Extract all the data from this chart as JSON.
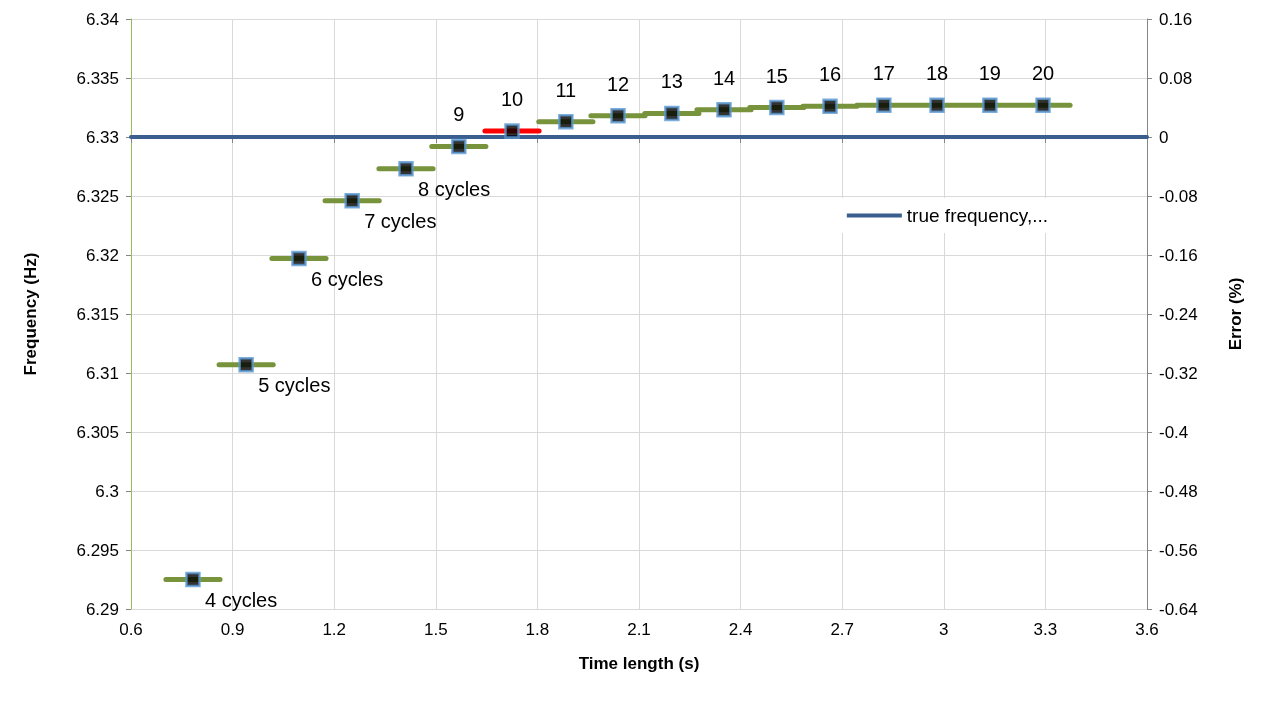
{
  "chart_data": {
    "type": "scatter",
    "xlabel": "Time length (s)",
    "ylabel": "Frequency (Hz)",
    "y2label": "Error (%)",
    "xlim": [
      0.6,
      3.6
    ],
    "xticks": [
      0.6,
      0.9,
      1.2,
      1.5,
      1.8,
      2.1,
      2.4,
      2.7,
      3,
      3.3,
      3.6
    ],
    "ylim": [
      6.29,
      6.34
    ],
    "yticks": [
      6.29,
      6.295,
      6.3,
      6.305,
      6.31,
      6.315,
      6.32,
      6.325,
      6.33,
      6.335,
      6.34
    ],
    "y2lim": [
      -0.64,
      0.16
    ],
    "y2ticks": [
      -0.64,
      -0.56,
      -0.48,
      -0.4,
      -0.32,
      -0.24,
      -0.16,
      -0.08,
      0,
      0.08,
      0.16
    ],
    "grid": true,
    "legend": "right",
    "annotations": [
      {
        "text": "4 cycles",
        "x": 0.783,
        "y": 6.2925
      },
      {
        "text": "5 cycles",
        "x": 0.94,
        "y": 6.3107
      },
      {
        "text": "6 cycles",
        "x": 1.096,
        "y": 6.3197
      },
      {
        "text": "7 cycles",
        "x": 1.253,
        "y": 6.3246
      },
      {
        "text": "8 cycles",
        "x": 1.412,
        "y": 6.3273
      },
      {
        "text": "9",
        "x": 1.568,
        "y": 6.3292
      },
      {
        "text": "10",
        "x": 1.725,
        "y": 6.3305
      },
      {
        "text": "11",
        "x": 1.884,
        "y": 6.3313
      },
      {
        "text": "12",
        "x": 2.038,
        "y": 6.3318
      },
      {
        "text": "13",
        "x": 2.197,
        "y": 6.332
      },
      {
        "text": "14",
        "x": 2.351,
        "y": 6.3323
      },
      {
        "text": "15",
        "x": 2.507,
        "y": 6.3325
      },
      {
        "text": "16",
        "x": 2.664,
        "y": 6.3326
      },
      {
        "text": "17",
        "x": 2.823,
        "y": 6.3327
      },
      {
        "text": "18",
        "x": 2.98,
        "y": 6.3327
      },
      {
        "text": "19",
        "x": 3.136,
        "y": 6.3327
      },
      {
        "text": "20",
        "x": 3.293,
        "y": 6.3327
      }
    ],
    "series": [
      {
        "color": "#000000",
        "marker": "square",
        "x": [
          0.783,
          0.94,
          1.096,
          1.253,
          1.412,
          1.568,
          1.725,
          1.884,
          2.038,
          2.197,
          2.351,
          2.507,
          2.664,
          2.823,
          2.98,
          3.136,
          3.293
        ],
        "values": [
          6.2925,
          6.3107,
          6.3197,
          6.3246,
          6.3273,
          6.3292,
          6.3305,
          6.3313,
          6.3318,
          6.332,
          6.3323,
          6.3325,
          6.3326,
          6.3327,
          6.3327,
          6.3327,
          6.3327
        ]
      },
      {
        "type": "line",
        "color": "#77933c",
        "line_style": "solid",
        "marker": "none",
        "x": [
          0.703,
          0.863,
          null,
          0.86,
          1.02,
          null,
          1.016,
          1.176,
          null,
          1.173,
          1.333,
          null,
          1.332,
          1.492,
          null,
          1.488,
          1.648,
          null,
          1.804,
          1.964,
          null,
          1.958,
          2.118,
          null,
          2.117,
          2.277,
          null,
          2.271,
          2.431,
          null,
          2.427,
          2.587,
          null,
          2.584,
          2.744,
          null,
          2.743,
          2.903,
          null,
          2.9,
          3.06,
          null,
          3.056,
          3.216,
          null,
          3.213,
          3.373
        ],
        "values": [
          6.2925,
          6.2925,
          null,
          6.3107,
          6.3107,
          null,
          6.3197,
          6.3197,
          null,
          6.3246,
          6.3246,
          null,
          6.3273,
          6.3273,
          null,
          6.3292,
          6.3292,
          null,
          6.3313,
          6.3313,
          null,
          6.3318,
          6.3318,
          null,
          6.332,
          6.332,
          null,
          6.3323,
          6.3323,
          null,
          6.3325,
          6.3325,
          null,
          6.3326,
          6.3326,
          null,
          6.3327,
          6.3327,
          null,
          6.3327,
          6.3327,
          null,
          6.3327,
          6.3327,
          null,
          6.3327,
          6.3327
        ]
      },
      {
        "type": "line",
        "color": "#ff0000",
        "line_style": "solid",
        "marker": "none",
        "x": [
          1.645,
          1.805
        ],
        "values": [
          6.3305,
          6.3305
        ]
      },
      {
        "type": "line",
        "name": "true frequency,...",
        "color": "#3a5f8e",
        "line_style": "solid",
        "marker": "none",
        "x": [
          0.6,
          3.6
        ],
        "values": [
          6.33,
          6.33
        ]
      }
    ]
  }
}
